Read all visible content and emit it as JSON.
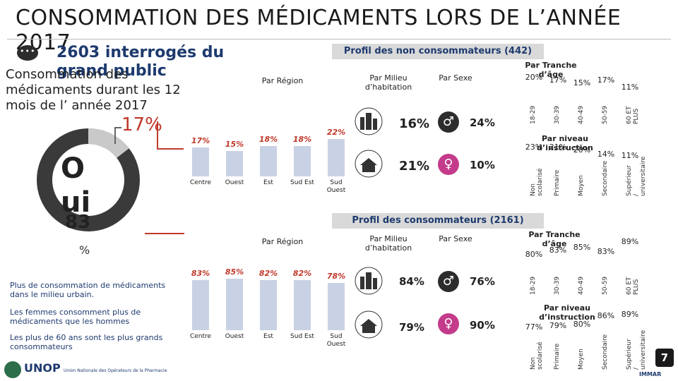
{
  "title": "CONSOMMATION DES MÉDICAMENTS LORS DE L’ANNÉE 2017",
  "sample": "2603 interrogés du grand public",
  "question": "Consommation des médicaments durant les 12 mois de l’ année 2017",
  "non_pct": "17%",
  "oui_label": "O ui",
  "oui_value": "83",
  "oui_pct": "%",
  "notes": [
    "Plus de consommation de médicaments dans le milieu urbain.",
    "Les femmes consomment plus de médicaments que les hommes",
    "Les plus de 60 ans sont les plus grands consommateurs"
  ],
  "non_consumers": {
    "banner": "Profil des non consommateurs (442)",
    "region_title": "Par Région",
    "regions": [
      "Centre",
      "Ouest",
      "Est",
      "Sud Est",
      "Sud Ouest"
    ],
    "region_values": [
      "17%",
      "15%",
      "18%",
      "18%",
      "22%"
    ],
    "milieu_title": "Par Milieu d’habitation",
    "milieu_values": [
      "16%",
      "21%"
    ],
    "sexe_title": "Par Sexe",
    "sexe_values": [
      "24%",
      "10%"
    ],
    "age_title": "Par Tranche d’âge",
    "age_groups": [
      "18-29",
      "30-39",
      "40-49",
      "50-59",
      "60 ET PLUS"
    ],
    "age_values": [
      "20%",
      "17%",
      "15%",
      "17%",
      "11%"
    ],
    "edu_title": "Par niveau d’instruction",
    "edu_groups": [
      "Non scolarisé",
      "Primaire",
      "Moyen",
      "Secondaire",
      "Supérieur / universitaire"
    ],
    "edu_values": [
      "23%",
      "21%",
      "20%",
      "14%",
      "11%"
    ]
  },
  "consumers": {
    "banner": "Profil des consommateurs (2161)",
    "region_title": "Par Région",
    "regions": [
      "Centre",
      "Ouest",
      "Est",
      "Sud Est",
      "Sud Ouest"
    ],
    "region_values": [
      "83%",
      "85%",
      "82%",
      "82%",
      "78%"
    ],
    "milieu_title": "Par Milieu d’habitation",
    "milieu_values": [
      "84%",
      "79%"
    ],
    "sexe_title": "Par Sexe",
    "sexe_values": [
      "76%",
      "90%"
    ],
    "age_title": "Par Tranche d’âge",
    "age_groups": [
      "18-29",
      "30-39",
      "40-49",
      "50-59",
      "60 ET PLUS"
    ],
    "age_values": [
      "80%",
      "83%",
      "85%",
      "83%",
      "89%"
    ],
    "edu_title": "Par niveau d’instruction",
    "edu_groups": [
      "Non scolarisé",
      "Primaire",
      "Moyen",
      "Secondaire",
      "Supérieur / universitaire"
    ],
    "edu_values": [
      "77%",
      "79%",
      "80%",
      "86%",
      "89%"
    ]
  },
  "icons": {
    "urban": "urban-city-icon",
    "rural": "rural-house-icon",
    "male": "male-symbol-icon",
    "female": "female-symbol-icon",
    "chat": "chat-bubble-icon"
  },
  "colors": {
    "accent_red": "#c0392b",
    "navy": "#1e3a6e",
    "donut_dark": "#3a3a3a",
    "donut_light": "#c9c9c9",
    "bar": "#c9d1e4",
    "male": "#2c2c2c",
    "female": "#c33b8a"
  },
  "footer": {
    "logo_left": "UNOP",
    "logo_left_sub": "Union Nationale des Opérateurs de la Pharmacie",
    "logo_right": "IMMAR",
    "page": "7"
  }
}
